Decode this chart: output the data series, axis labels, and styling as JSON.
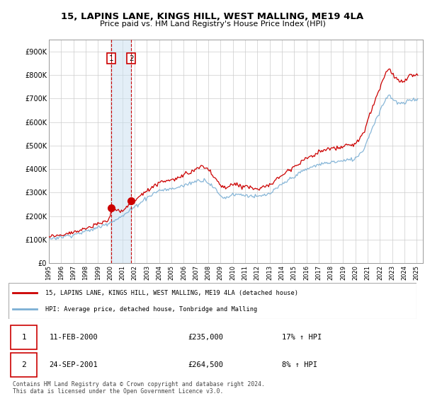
{
  "title": "15, LAPINS LANE, KINGS HILL, WEST MALLING, ME19 4LA",
  "subtitle": "Price paid vs. HM Land Registry's House Price Index (HPI)",
  "ylabel_ticks": [
    "£0",
    "£100K",
    "£200K",
    "£300K",
    "£400K",
    "£500K",
    "£600K",
    "£700K",
    "£800K",
    "£900K"
  ],
  "ytick_values": [
    0,
    100000,
    200000,
    300000,
    400000,
    500000,
    600000,
    700000,
    800000,
    900000
  ],
  "ylim": [
    0,
    950000
  ],
  "xlim_start": 1995.0,
  "xlim_end": 2025.5,
  "legend_line1": "15, LAPINS LANE, KINGS HILL, WEST MALLING, ME19 4LA (detached house)",
  "legend_line2": "HPI: Average price, detached house, Tonbridge and Malling",
  "line1_color": "#cc0000",
  "line2_color": "#7bafd4",
  "transaction1_date": "11-FEB-2000",
  "transaction1_price": "£235,000",
  "transaction1_hpi": "17% ↑ HPI",
  "transaction2_date": "24-SEP-2001",
  "transaction2_price": "£264,500",
  "transaction2_hpi": "8% ↑ HPI",
  "footer": "Contains HM Land Registry data © Crown copyright and database right 2024.\nThis data is licensed under the Open Government Licence v3.0.",
  "marker1_x": 2000.08,
  "marker1_y": 235000,
  "marker2_x": 2001.72,
  "marker2_y": 264500,
  "vline1_x": 2000.08,
  "vline2_x": 2001.72
}
